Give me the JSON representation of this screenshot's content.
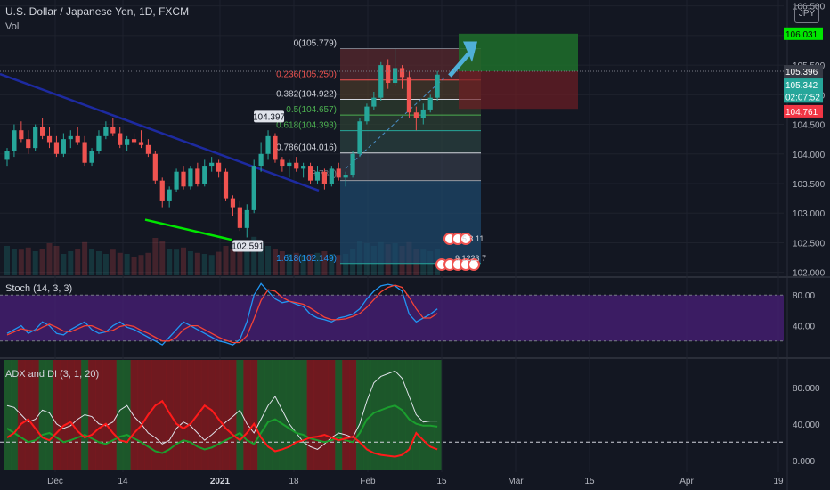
{
  "header": {
    "title": "U.S. Dollar / Japanese Yen, 1D, FXCM",
    "volume_label": "Vol",
    "currency_button": "JPY"
  },
  "indicators": {
    "stoch_label": "Stoch (14, 3, 3)",
    "adx_label": "ADX and DI (3, 1, 20)"
  },
  "colors": {
    "background": "#131722",
    "bull": "#26a69a",
    "bear": "#ef5350",
    "trendline": "#1d2aa0",
    "support_line": "#00e600",
    "stoch_k": "#2196f3",
    "stoch_d": "#f44336",
    "stoch_bg": "#4a1f7a",
    "adx_green_bg": "#1e5e2b",
    "adx_red_bg": "#7a1a1f"
  },
  "price_badges": [
    {
      "text": "106.031",
      "bg": "#00e600",
      "fg": "#0a0a0a"
    },
    {
      "text": "105.396",
      "bg": "#363a45",
      "fg": "#ffffff"
    },
    {
      "text": "105.342",
      "bg": "#26a69a",
      "fg": "#ffffff"
    },
    {
      "text": "02:07:52",
      "bg": "#26a69a",
      "fg": "#ffffff"
    },
    {
      "text": "104.761",
      "bg": "#f23645",
      "fg": "#ffffff"
    }
  ],
  "annotations": {
    "high_label": "104.397",
    "low_label": "102.591",
    "fib_extension": "1.618(102.149)",
    "fib_partial": "3.785)",
    "event_row1": "5 3 11",
    "event_row2": "9 1223 7"
  },
  "chart_data": [
    {
      "type": "candlestick",
      "title": "U.S. Dollar / Japanese Yen, 1D, FXCM",
      "y_ticks": [
        "106.500",
        "106.031",
        "105.500",
        "105.000",
        "104.500",
        "104.000",
        "103.500",
        "103.000",
        "102.500",
        "102.000"
      ],
      "x_ticks": [
        "Dec",
        "14",
        "2021",
        "18",
        "Feb",
        "15",
        "Mar",
        "15",
        "Apr",
        "19"
      ],
      "ylim": [
        101.95,
        106.6
      ],
      "fibonacci": [
        {
          "label": "0(105.779)",
          "value": 105.779
        },
        {
          "label": "0.236(105.250)",
          "value": 105.25
        },
        {
          "label": "0.382(104.922)",
          "value": 104.922
        },
        {
          "label": "0.5(104.657)",
          "value": 104.657
        },
        {
          "label": "0.618(104.393)",
          "value": 104.393
        },
        {
          "label": "0.786(104.016)",
          "value": 104.016
        }
      ],
      "candles": [
        [
          103.9,
          104.1,
          103.8,
          104.05
        ],
        [
          104.05,
          104.5,
          103.95,
          104.4
        ],
        [
          104.4,
          104.55,
          104.2,
          104.25
        ],
        [
          104.25,
          104.4,
          104.0,
          104.1
        ],
        [
          104.1,
          104.5,
          104.05,
          104.45
        ],
        [
          104.45,
          104.6,
          104.25,
          104.3
        ],
        [
          104.3,
          104.45,
          104.1,
          104.2
        ],
        [
          104.2,
          104.3,
          103.95,
          104.0
        ],
        [
          104.0,
          104.35,
          103.95,
          104.25
        ],
        [
          104.25,
          104.4,
          104.1,
          104.3
        ],
        [
          104.3,
          104.45,
          104.15,
          104.2
        ],
        [
          104.2,
          104.3,
          103.8,
          103.85
        ],
        [
          103.85,
          104.1,
          103.8,
          104.05
        ],
        [
          104.05,
          104.4,
          104.0,
          104.3
        ],
        [
          104.3,
          104.55,
          104.25,
          104.45
        ],
        [
          104.45,
          104.6,
          104.3,
          104.35
        ],
        [
          104.35,
          104.45,
          104.1,
          104.15
        ],
        [
          104.15,
          104.3,
          104.05,
          104.25
        ],
        [
          104.25,
          104.35,
          104.15,
          104.2
        ],
        [
          104.2,
          104.4,
          104.1,
          104.15
        ],
        [
          104.15,
          104.25,
          103.95,
          104.0
        ],
        [
          104.0,
          104.05,
          103.5,
          103.55
        ],
        [
          103.55,
          103.6,
          103.1,
          103.2
        ],
        [
          103.2,
          103.45,
          103.1,
          103.4
        ],
        [
          103.4,
          103.75,
          103.35,
          103.7
        ],
        [
          103.7,
          103.8,
          103.4,
          103.45
        ],
        [
          103.45,
          103.8,
          103.4,
          103.75
        ],
        [
          103.75,
          103.85,
          103.45,
          103.5
        ],
        [
          103.5,
          103.9,
          103.45,
          103.8
        ],
        [
          103.8,
          103.95,
          103.7,
          103.85
        ],
        [
          103.85,
          103.9,
          103.6,
          103.7
        ],
        [
          103.7,
          103.75,
          103.2,
          103.25
        ],
        [
          103.25,
          103.3,
          102.95,
          103.1
        ],
        [
          103.1,
          103.2,
          102.7,
          102.75
        ],
        [
          102.75,
          103.15,
          102.59,
          103.05
        ],
        [
          103.05,
          103.9,
          103.0,
          103.8
        ],
        [
          103.8,
          104.2,
          103.7,
          104.0
        ],
        [
          104.0,
          104.4,
          103.9,
          104.3
        ],
        [
          104.3,
          104.35,
          103.85,
          103.9
        ],
        [
          103.9,
          103.95,
          103.7,
          103.8
        ],
        [
          103.8,
          103.9,
          103.6,
          103.85
        ],
        [
          103.85,
          103.95,
          103.7,
          103.75
        ],
        [
          103.75,
          103.85,
          103.6,
          103.8
        ],
        [
          103.8,
          103.85,
          103.5,
          103.55
        ],
        [
          103.55,
          103.8,
          103.5,
          103.7
        ],
        [
          103.7,
          103.75,
          103.4,
          103.5
        ],
        [
          103.5,
          103.8,
          103.45,
          103.75
        ],
        [
          103.75,
          103.85,
          103.55,
          103.6
        ],
        [
          103.6,
          103.7,
          103.45,
          103.65
        ],
        [
          103.65,
          104.05,
          103.6,
          104.0
        ],
        [
          104.0,
          104.6,
          103.95,
          104.55
        ],
        [
          104.55,
          104.85,
          104.5,
          104.8
        ],
        [
          104.8,
          105.05,
          104.75,
          104.95
        ],
        [
          104.95,
          105.55,
          104.9,
          105.5
        ],
        [
          105.5,
          105.6,
          105.1,
          105.2
        ],
        [
          105.2,
          105.78,
          105.15,
          105.45
        ],
        [
          105.45,
          105.5,
          105.1,
          105.3
        ],
        [
          105.3,
          105.4,
          104.6,
          104.7
        ],
        [
          104.7,
          104.8,
          104.4,
          104.6
        ],
        [
          104.6,
          104.85,
          104.5,
          104.75
        ],
        [
          104.75,
          105.0,
          104.7,
          104.95
        ],
        [
          104.95,
          105.4,
          104.9,
          105.34
        ]
      ],
      "volumes": [
        0.55,
        0.5,
        0.48,
        0.52,
        0.45,
        0.5,
        0.6,
        0.55,
        0.4,
        0.45,
        0.5,
        0.62,
        0.5,
        0.45,
        0.4,
        0.48,
        0.42,
        0.4,
        0.35,
        0.38,
        0.42,
        0.7,
        0.65,
        0.5,
        0.48,
        0.52,
        0.45,
        0.42,
        0.4,
        0.38,
        0.44,
        0.55,
        0.5,
        0.6,
        0.58,
        0.72,
        0.6,
        0.55,
        0.5,
        0.45,
        0.4,
        0.42,
        0.38,
        0.4,
        0.42,
        0.45,
        0.4,
        0.38,
        0.4,
        0.5,
        0.65,
        0.6,
        0.55,
        0.62,
        0.58,
        0.6,
        0.55,
        0.62,
        0.5,
        0.48,
        0.45,
        0.5
      ]
    },
    {
      "type": "line",
      "title": "Stoch (14, 3, 3)",
      "y_ticks": [
        "80.00",
        "40.00"
      ],
      "ylim": [
        0,
        100
      ],
      "series": [
        {
          "name": "%K",
          "color": "#2196f3",
          "values": [
            30,
            35,
            40,
            30,
            35,
            45,
            40,
            30,
            28,
            35,
            40,
            45,
            35,
            30,
            32,
            40,
            45,
            38,
            35,
            30,
            25,
            20,
            15,
            25,
            35,
            45,
            40,
            35,
            30,
            25,
            20,
            18,
            15,
            22,
            45,
            80,
            95,
            85,
            75,
            70,
            72,
            68,
            65,
            55,
            50,
            48,
            45,
            50,
            52,
            55,
            62,
            75,
            85,
            92,
            94,
            92,
            85,
            55,
            45,
            50,
            55,
            62
          ]
        },
        {
          "name": "%D",
          "color": "#f44336",
          "values": [
            28,
            32,
            36,
            34,
            33,
            38,
            42,
            38,
            33,
            32,
            36,
            40,
            40,
            36,
            32,
            34,
            39,
            41,
            39,
            34,
            30,
            25,
            20,
            20,
            25,
            35,
            40,
            40,
            35,
            30,
            25,
            21,
            18,
            18,
            27,
            49,
            73,
            87,
            85,
            77,
            72,
            70,
            68,
            63,
            57,
            51,
            48,
            48,
            49,
            52,
            56,
            64,
            74,
            84,
            90,
            93,
            90,
            77,
            62,
            50,
            50,
            56
          ]
        }
      ]
    },
    {
      "type": "line",
      "title": "ADX and DI (3, 1, 20)",
      "y_ticks": [
        "80.000",
        "40.000",
        "0.000"
      ],
      "ylim": [
        -10,
        110
      ],
      "threshold": 20,
      "series": [
        {
          "name": "ADX",
          "color": "#e0e3eb",
          "values": [
            60,
            58,
            50,
            42,
            45,
            55,
            52,
            40,
            35,
            38,
            45,
            50,
            48,
            40,
            38,
            42,
            55,
            60,
            48,
            40,
            30,
            25,
            18,
            22,
            35,
            42,
            38,
            30,
            22,
            28,
            35,
            42,
            48,
            55,
            40,
            30,
            45,
            60,
            70,
            55,
            40,
            30,
            20,
            15,
            12,
            18,
            25,
            30,
            28,
            25,
            40,
            65,
            85,
            92,
            95,
            98,
            90,
            70,
            50,
            42,
            43,
            43
          ]
        },
        {
          "name": "+DI",
          "color": "#1b9e2e",
          "values": [
            35,
            30,
            25,
            20,
            22,
            28,
            30,
            25,
            20,
            22,
            25,
            28,
            24,
            20,
            18,
            22,
            26,
            28,
            24,
            20,
            15,
            10,
            8,
            12,
            18,
            22,
            20,
            15,
            12,
            14,
            18,
            22,
            26,
            30,
            22,
            18,
            30,
            42,
            45,
            40,
            35,
            30,
            28,
            24,
            22,
            20,
            22,
            25,
            22,
            20,
            30,
            45,
            52,
            55,
            58,
            60,
            55,
            45,
            40,
            38,
            38,
            37
          ]
        },
        {
          "name": "-DI",
          "color": "#ff1a1a",
          "values": [
            25,
            30,
            40,
            45,
            35,
            25,
            22,
            30,
            38,
            42,
            32,
            25,
            28,
            35,
            40,
            30,
            22,
            20,
            30,
            38,
            50,
            60,
            65,
            52,
            40,
            35,
            40,
            50,
            60,
            55,
            45,
            35,
            28,
            22,
            30,
            40,
            25,
            15,
            10,
            12,
            15,
            20,
            22,
            25,
            26,
            28,
            25,
            22,
            24,
            26,
            20,
            12,
            8,
            6,
            5,
            4,
            6,
            12,
            30,
            22,
            15,
            12
          ]
        }
      ]
    }
  ]
}
